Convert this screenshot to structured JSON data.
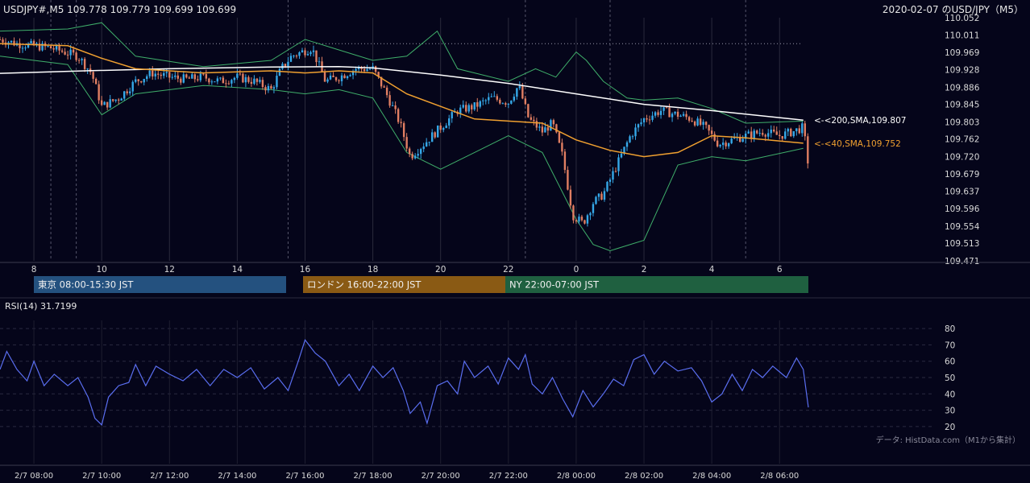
{
  "header": {
    "symbol_info": "USDJPY#,M5 109.778 109.779 109.699 109.699",
    "title": "2020-02-07 のUSD/JPY（M5）"
  },
  "sessions": [
    {
      "label": "東京 08:00-15:30 JST",
      "color": "#24517f"
    },
    {
      "label": "ロンドン 16:00-22:00 JST",
      "color": "#8a5a14"
    },
    {
      "label": "NY 22:00-07:00 JST",
      "color": "#1f6040"
    }
  ],
  "rsi": {
    "label": "RSI(14) 31.7199"
  },
  "credit": "データ: HistData.com（M1から集計）",
  "colors": {
    "background": "#05051a",
    "bull": "#35a8e8",
    "bear": "#e07e62",
    "sma200": "#ffffff",
    "sma40": "#f0a030",
    "bollinger": "#3fae6a",
    "rsi": "#5a6ef0",
    "text": "#d8d8d8"
  },
  "chart_data": [
    {
      "type": "candlestick",
      "y_ticks": [
        "110.052",
        "110.011",
        "109.969",
        "109.928",
        "109.886",
        "109.845",
        "109.803",
        "109.762",
        "109.720",
        "109.679",
        "109.637",
        "109.596",
        "109.554",
        "109.513",
        "109.471"
      ],
      "ylim": [
        109.471,
        110.052
      ],
      "x_ticks": [
        "8",
        "10",
        "12",
        "14",
        "16",
        "18",
        "20",
        "22",
        "0",
        "2",
        "4",
        "6"
      ],
      "x_tick_hours": [
        8,
        10,
        12,
        14,
        16,
        18,
        20,
        22,
        24,
        26,
        28,
        30
      ],
      "xlim_hours": [
        7.0,
        30.85
      ],
      "sma200": {
        "label": "<-<200,SMA,109.807",
        "value": 109.807,
        "points": [
          [
            7.0,
            109.919
          ],
          [
            9.5,
            109.925
          ],
          [
            12,
            109.93
          ],
          [
            15,
            109.934
          ],
          [
            17,
            109.935
          ],
          [
            18,
            109.932
          ],
          [
            20,
            109.915
          ],
          [
            22,
            109.895
          ],
          [
            24,
            109.87
          ],
          [
            26,
            109.845
          ],
          [
            28,
            109.83
          ],
          [
            30.7,
            109.807
          ]
        ]
      },
      "sma40": {
        "label": "<-<40,SMA,109.752",
        "value": 109.752,
        "points": [
          [
            7.0,
            109.99
          ],
          [
            9,
            109.985
          ],
          [
            10,
            109.955
          ],
          [
            11,
            109.93
          ],
          [
            13,
            109.92
          ],
          [
            15,
            109.925
          ],
          [
            16,
            109.92
          ],
          [
            17,
            109.925
          ],
          [
            18,
            109.92
          ],
          [
            19,
            109.87
          ],
          [
            20,
            109.84
          ],
          [
            21,
            109.81
          ],
          [
            22,
            109.805
          ],
          [
            23,
            109.8
          ],
          [
            24,
            109.76
          ],
          [
            25,
            109.735
          ],
          [
            26,
            109.72
          ],
          [
            27,
            109.73
          ],
          [
            28,
            109.77
          ],
          [
            29,
            109.765
          ],
          [
            30.7,
            109.752
          ]
        ]
      },
      "bollinger_upper": [
        [
          7.0,
          110.02
        ],
        [
          9,
          110.025
        ],
        [
          10,
          110.04
        ],
        [
          11,
          109.96
        ],
        [
          13,
          109.935
        ],
        [
          15,
          109.95
        ],
        [
          16,
          110.0
        ],
        [
          17,
          109.975
        ],
        [
          18,
          109.95
        ],
        [
          19,
          109.96
        ],
        [
          19.9,
          110.02
        ],
        [
          20.5,
          109.93
        ],
        [
          21,
          109.92
        ],
        [
          22,
          109.9
        ],
        [
          22.8,
          109.93
        ],
        [
          23.4,
          109.91
        ],
        [
          24,
          109.97
        ],
        [
          24.3,
          109.95
        ],
        [
          24.8,
          109.9
        ],
        [
          25.5,
          109.86
        ],
        [
          26,
          109.855
        ],
        [
          27,
          109.86
        ],
        [
          28,
          109.835
        ],
        [
          29,
          109.8
        ],
        [
          30.7,
          109.805
        ]
      ],
      "bollinger_lower": [
        [
          7.0,
          109.96
        ],
        [
          9,
          109.94
        ],
        [
          10,
          109.82
        ],
        [
          11,
          109.87
        ],
        [
          13,
          109.89
        ],
        [
          15,
          109.88
        ],
        [
          16,
          109.87
        ],
        [
          17,
          109.88
        ],
        [
          18,
          109.86
        ],
        [
          19,
          109.73
        ],
        [
          20,
          109.69
        ],
        [
          21,
          109.73
        ],
        [
          22,
          109.77
        ],
        [
          23,
          109.73
        ],
        [
          24,
          109.57
        ],
        [
          24.5,
          109.51
        ],
        [
          25,
          109.495
        ],
        [
          26,
          109.52
        ],
        [
          27,
          109.7
        ],
        [
          28,
          109.72
        ],
        [
          29,
          109.71
        ],
        [
          30.7,
          109.74
        ]
      ],
      "close_path": [
        [
          7.0,
          110.0
        ],
        [
          7.5,
          109.99
        ],
        [
          8.5,
          109.98
        ],
        [
          9.3,
          109.96
        ],
        [
          9.7,
          109.92
        ],
        [
          10.0,
          109.84
        ],
        [
          10.5,
          109.86
        ],
        [
          11,
          109.9
        ],
        [
          11.5,
          109.92
        ],
        [
          12,
          109.91
        ],
        [
          12.5,
          109.905
        ],
        [
          13,
          109.91
        ],
        [
          13.5,
          109.9
        ],
        [
          14,
          109.91
        ],
        [
          14.5,
          109.9
        ],
        [
          15,
          109.88
        ],
        [
          15.3,
          109.93
        ],
        [
          15.6,
          109.96
        ],
        [
          16.2,
          109.98
        ],
        [
          16.6,
          109.9
        ],
        [
          17,
          109.91
        ],
        [
          17.5,
          109.93
        ],
        [
          18,
          109.93
        ],
        [
          18.4,
          109.87
        ],
        [
          18.8,
          109.8
        ],
        [
          19.1,
          109.72
        ],
        [
          19.5,
          109.75
        ],
        [
          20,
          109.79
        ],
        [
          20.5,
          109.83
        ],
        [
          21,
          109.84
        ],
        [
          21.5,
          109.86
        ],
        [
          22,
          109.85
        ],
        [
          22.3,
          109.89
        ],
        [
          22.6,
          109.81
        ],
        [
          23,
          109.78
        ],
        [
          23.3,
          109.8
        ],
        [
          23.6,
          109.72
        ],
        [
          23.9,
          109.58
        ],
        [
          24.2,
          109.56
        ],
        [
          24.5,
          109.61
        ],
        [
          24.8,
          109.63
        ],
        [
          25.2,
          109.7
        ],
        [
          25.6,
          109.77
        ],
        [
          26,
          109.81
        ],
        [
          26.5,
          109.83
        ],
        [
          27,
          109.82
        ],
        [
          27.4,
          109.81
        ],
        [
          27.8,
          109.79
        ],
        [
          28.2,
          109.75
        ],
        [
          28.6,
          109.76
        ],
        [
          29,
          109.77
        ],
        [
          29.5,
          109.78
        ],
        [
          30,
          109.77
        ],
        [
          30.4,
          109.78
        ],
        [
          30.7,
          109.79
        ],
        [
          30.85,
          109.699
        ]
      ],
      "vertical_lines_hours": [
        8,
        10,
        12,
        14,
        16,
        18,
        20,
        22,
        24,
        26,
        28,
        30
      ],
      "dashed_lines_hours": [
        8.5,
        9.25,
        15.5,
        22.5,
        25.0,
        29.0
      ]
    },
    {
      "type": "line",
      "series_label": "RSI(14)",
      "y_ticks": [
        "80",
        "70",
        "60",
        "50",
        "40",
        "30",
        "20"
      ],
      "ylim": [
        15,
        85
      ],
      "x_ticks": [
        "2/7 08:00",
        "2/7 10:00",
        "2/7 12:00",
        "2/7 14:00",
        "2/7 16:00",
        "2/7 18:00",
        "2/7 20:00",
        "2/7 22:00",
        "2/8 00:00",
        "2/8 02:00",
        "2/8 04:00",
        "2/8 06:00"
      ],
      "rsi_path": [
        [
          7.0,
          55
        ],
        [
          7.2,
          66
        ],
        [
          7.5,
          55
        ],
        [
          7.8,
          48
        ],
        [
          8.0,
          60
        ],
        [
          8.3,
          45
        ],
        [
          8.6,
          52
        ],
        [
          9.0,
          45
        ],
        [
          9.3,
          50
        ],
        [
          9.6,
          38
        ],
        [
          9.8,
          25
        ],
        [
          10.0,
          21
        ],
        [
          10.2,
          38
        ],
        [
          10.5,
          45
        ],
        [
          10.8,
          47
        ],
        [
          11,
          58
        ],
        [
          11.3,
          45
        ],
        [
          11.6,
          57
        ],
        [
          12,
          52
        ],
        [
          12.4,
          48
        ],
        [
          12.8,
          55
        ],
        [
          13.2,
          45
        ],
        [
          13.6,
          55
        ],
        [
          14,
          50
        ],
        [
          14.4,
          56
        ],
        [
          14.8,
          43
        ],
        [
          15.2,
          50
        ],
        [
          15.5,
          42
        ],
        [
          15.8,
          60
        ],
        [
          16.0,
          73
        ],
        [
          16.3,
          65
        ],
        [
          16.6,
          60
        ],
        [
          17,
          45
        ],
        [
          17.3,
          52
        ],
        [
          17.6,
          42
        ],
        [
          18,
          57
        ],
        [
          18.3,
          50
        ],
        [
          18.6,
          56
        ],
        [
          18.9,
          42
        ],
        [
          19.1,
          28
        ],
        [
          19.4,
          35
        ],
        [
          19.6,
          22
        ],
        [
          19.9,
          45
        ],
        [
          20.2,
          48
        ],
        [
          20.5,
          40
        ],
        [
          20.7,
          60
        ],
        [
          21,
          50
        ],
        [
          21.4,
          57
        ],
        [
          21.7,
          46
        ],
        [
          22,
          62
        ],
        [
          22.3,
          55
        ],
        [
          22.5,
          64
        ],
        [
          22.7,
          46
        ],
        [
          23,
          40
        ],
        [
          23.3,
          50
        ],
        [
          23.6,
          37
        ],
        [
          23.9,
          26
        ],
        [
          24.2,
          42
        ],
        [
          24.5,
          32
        ],
        [
          24.8,
          40
        ],
        [
          25.1,
          49
        ],
        [
          25.4,
          45
        ],
        [
          25.7,
          61
        ],
        [
          26.0,
          64
        ],
        [
          26.3,
          52
        ],
        [
          26.6,
          60
        ],
        [
          27,
          54
        ],
        [
          27.4,
          56
        ],
        [
          27.7,
          48
        ],
        [
          28,
          35
        ],
        [
          28.3,
          40
        ],
        [
          28.6,
          52
        ],
        [
          28.9,
          42
        ],
        [
          29.2,
          55
        ],
        [
          29.5,
          50
        ],
        [
          29.8,
          57
        ],
        [
          30.2,
          50
        ],
        [
          30.5,
          62
        ],
        [
          30.7,
          55
        ],
        [
          30.85,
          31.7
        ]
      ]
    }
  ]
}
